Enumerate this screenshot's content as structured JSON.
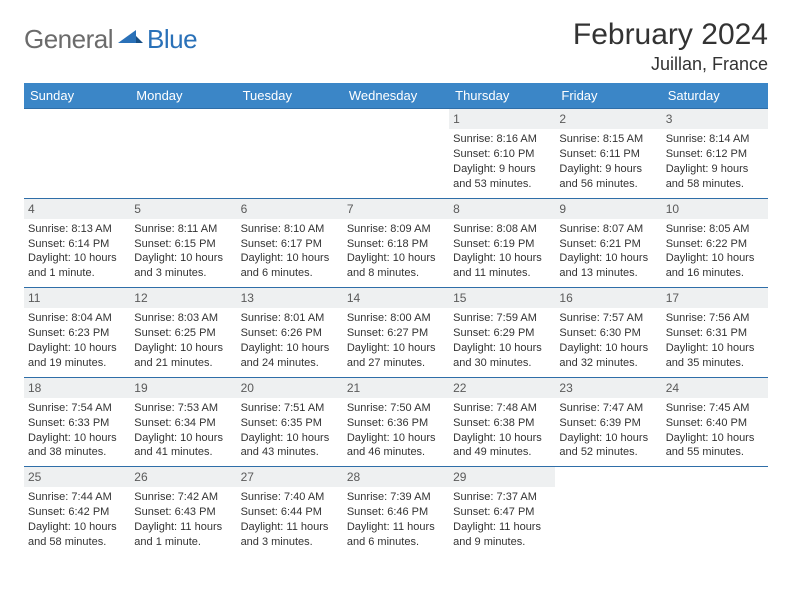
{
  "logo": {
    "general": "General",
    "blue": "Blue"
  },
  "title": "February 2024",
  "location": "Juillan, France",
  "colors": {
    "header_bg": "#3b86c7",
    "header_text": "#ffffff",
    "row_divider": "#2f6ea8",
    "daynum_bg": "#eef0f1",
    "daynum_text": "#5a5a5a",
    "body_text": "#333333",
    "logo_gray": "#6b6b6b",
    "logo_blue": "#2a71b8"
  },
  "weekdays": [
    "Sunday",
    "Monday",
    "Tuesday",
    "Wednesday",
    "Thursday",
    "Friday",
    "Saturday"
  ],
  "weeks": [
    [
      null,
      null,
      null,
      null,
      {
        "n": "1",
        "sr": "Sunrise: 8:16 AM",
        "ss": "Sunset: 6:10 PM",
        "dl": "Daylight: 9 hours and 53 minutes."
      },
      {
        "n": "2",
        "sr": "Sunrise: 8:15 AM",
        "ss": "Sunset: 6:11 PM",
        "dl": "Daylight: 9 hours and 56 minutes."
      },
      {
        "n": "3",
        "sr": "Sunrise: 8:14 AM",
        "ss": "Sunset: 6:12 PM",
        "dl": "Daylight: 9 hours and 58 minutes."
      }
    ],
    [
      {
        "n": "4",
        "sr": "Sunrise: 8:13 AM",
        "ss": "Sunset: 6:14 PM",
        "dl": "Daylight: 10 hours and 1 minute."
      },
      {
        "n": "5",
        "sr": "Sunrise: 8:11 AM",
        "ss": "Sunset: 6:15 PM",
        "dl": "Daylight: 10 hours and 3 minutes."
      },
      {
        "n": "6",
        "sr": "Sunrise: 8:10 AM",
        "ss": "Sunset: 6:17 PM",
        "dl": "Daylight: 10 hours and 6 minutes."
      },
      {
        "n": "7",
        "sr": "Sunrise: 8:09 AM",
        "ss": "Sunset: 6:18 PM",
        "dl": "Daylight: 10 hours and 8 minutes."
      },
      {
        "n": "8",
        "sr": "Sunrise: 8:08 AM",
        "ss": "Sunset: 6:19 PM",
        "dl": "Daylight: 10 hours and 11 minutes."
      },
      {
        "n": "9",
        "sr": "Sunrise: 8:07 AM",
        "ss": "Sunset: 6:21 PM",
        "dl": "Daylight: 10 hours and 13 minutes."
      },
      {
        "n": "10",
        "sr": "Sunrise: 8:05 AM",
        "ss": "Sunset: 6:22 PM",
        "dl": "Daylight: 10 hours and 16 minutes."
      }
    ],
    [
      {
        "n": "11",
        "sr": "Sunrise: 8:04 AM",
        "ss": "Sunset: 6:23 PM",
        "dl": "Daylight: 10 hours and 19 minutes."
      },
      {
        "n": "12",
        "sr": "Sunrise: 8:03 AM",
        "ss": "Sunset: 6:25 PM",
        "dl": "Daylight: 10 hours and 21 minutes."
      },
      {
        "n": "13",
        "sr": "Sunrise: 8:01 AM",
        "ss": "Sunset: 6:26 PM",
        "dl": "Daylight: 10 hours and 24 minutes."
      },
      {
        "n": "14",
        "sr": "Sunrise: 8:00 AM",
        "ss": "Sunset: 6:27 PM",
        "dl": "Daylight: 10 hours and 27 minutes."
      },
      {
        "n": "15",
        "sr": "Sunrise: 7:59 AM",
        "ss": "Sunset: 6:29 PM",
        "dl": "Daylight: 10 hours and 30 minutes."
      },
      {
        "n": "16",
        "sr": "Sunrise: 7:57 AM",
        "ss": "Sunset: 6:30 PM",
        "dl": "Daylight: 10 hours and 32 minutes."
      },
      {
        "n": "17",
        "sr": "Sunrise: 7:56 AM",
        "ss": "Sunset: 6:31 PM",
        "dl": "Daylight: 10 hours and 35 minutes."
      }
    ],
    [
      {
        "n": "18",
        "sr": "Sunrise: 7:54 AM",
        "ss": "Sunset: 6:33 PM",
        "dl": "Daylight: 10 hours and 38 minutes."
      },
      {
        "n": "19",
        "sr": "Sunrise: 7:53 AM",
        "ss": "Sunset: 6:34 PM",
        "dl": "Daylight: 10 hours and 41 minutes."
      },
      {
        "n": "20",
        "sr": "Sunrise: 7:51 AM",
        "ss": "Sunset: 6:35 PM",
        "dl": "Daylight: 10 hours and 43 minutes."
      },
      {
        "n": "21",
        "sr": "Sunrise: 7:50 AM",
        "ss": "Sunset: 6:36 PM",
        "dl": "Daylight: 10 hours and 46 minutes."
      },
      {
        "n": "22",
        "sr": "Sunrise: 7:48 AM",
        "ss": "Sunset: 6:38 PM",
        "dl": "Daylight: 10 hours and 49 minutes."
      },
      {
        "n": "23",
        "sr": "Sunrise: 7:47 AM",
        "ss": "Sunset: 6:39 PM",
        "dl": "Daylight: 10 hours and 52 minutes."
      },
      {
        "n": "24",
        "sr": "Sunrise: 7:45 AM",
        "ss": "Sunset: 6:40 PM",
        "dl": "Daylight: 10 hours and 55 minutes."
      }
    ],
    [
      {
        "n": "25",
        "sr": "Sunrise: 7:44 AM",
        "ss": "Sunset: 6:42 PM",
        "dl": "Daylight: 10 hours and 58 minutes."
      },
      {
        "n": "26",
        "sr": "Sunrise: 7:42 AM",
        "ss": "Sunset: 6:43 PM",
        "dl": "Daylight: 11 hours and 1 minute."
      },
      {
        "n": "27",
        "sr": "Sunrise: 7:40 AM",
        "ss": "Sunset: 6:44 PM",
        "dl": "Daylight: 11 hours and 3 minutes."
      },
      {
        "n": "28",
        "sr": "Sunrise: 7:39 AM",
        "ss": "Sunset: 6:46 PM",
        "dl": "Daylight: 11 hours and 6 minutes."
      },
      {
        "n": "29",
        "sr": "Sunrise: 7:37 AM",
        "ss": "Sunset: 6:47 PM",
        "dl": "Daylight: 11 hours and 9 minutes."
      },
      null,
      null
    ]
  ]
}
